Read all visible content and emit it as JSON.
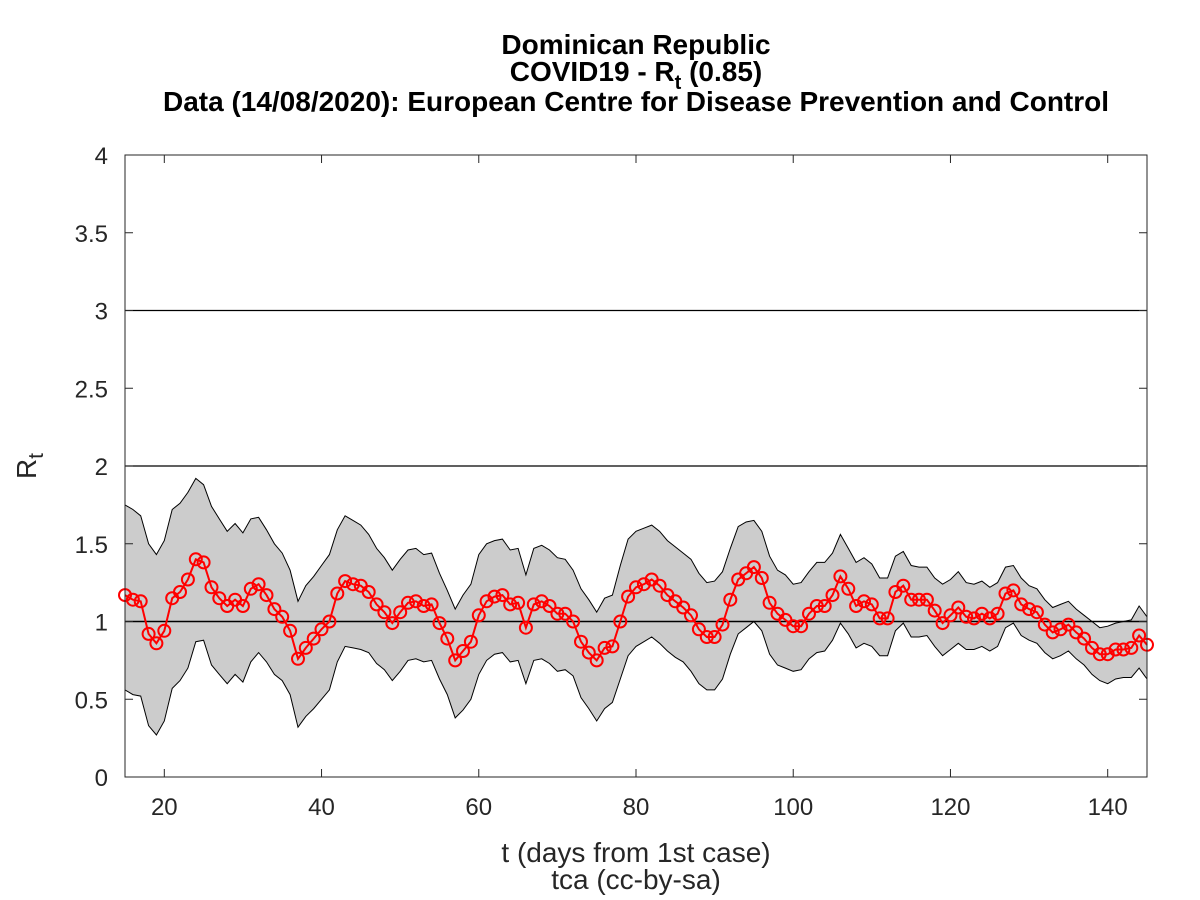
{
  "title": {
    "line1": "Dominican Republic",
    "line2_prefix": "COVID19 - R",
    "line2_sub": "t",
    "line2_suffix": " (0.85)",
    "line3": "Data (14/08/2020): European Centre for Disease Prevention and Control"
  },
  "axes": {
    "xlabel": "t (days from 1st case)",
    "credit": "tca (cc-by-sa)",
    "ylabel_main": "R",
    "ylabel_sub": "t"
  },
  "chart_data": {
    "type": "line",
    "x_start": 15,
    "x_end": 145,
    "xlim": [
      15,
      145
    ],
    "ylim": [
      0,
      4
    ],
    "x_ticks": [
      20,
      40,
      60,
      80,
      100,
      120,
      140
    ],
    "y_ticks": [
      0,
      0.5,
      1,
      1.5,
      2,
      2.5,
      3,
      3.5,
      4
    ],
    "x_tick_labels": [
      "20",
      "40",
      "60",
      "80",
      "100",
      "120",
      "140"
    ],
    "y_tick_labels": [
      "0",
      "0.5",
      "1",
      "1.5",
      "2",
      "2.5",
      "3",
      "3.5",
      "4"
    ],
    "reference_lines": [
      1,
      2,
      3
    ],
    "series": [
      {
        "role": "rt",
        "color": "#ff0000",
        "marker": "circle",
        "values": [
          1.17,
          1.14,
          1.13,
          0.92,
          0.86,
          0.94,
          1.15,
          1.19,
          1.27,
          1.4,
          1.38,
          1.22,
          1.15,
          1.1,
          1.14,
          1.1,
          1.21,
          1.24,
          1.17,
          1.08,
          1.03,
          0.94,
          0.76,
          0.83,
          0.89,
          0.95,
          1.0,
          1.18,
          1.26,
          1.24,
          1.23,
          1.19,
          1.11,
          1.06,
          0.99,
          1.06,
          1.12,
          1.13,
          1.1,
          1.11,
          0.99,
          0.89,
          0.75,
          0.81,
          0.87,
          1.04,
          1.13,
          1.16,
          1.17,
          1.11,
          1.12,
          0.96,
          1.11,
          1.13,
          1.1,
          1.05,
          1.05,
          1.0,
          0.87,
          0.8,
          0.75,
          0.83,
          0.84,
          1.0,
          1.16,
          1.22,
          1.24,
          1.27,
          1.23,
          1.17,
          1.13,
          1.09,
          1.04,
          0.95,
          0.9,
          0.9,
          0.98,
          1.14,
          1.27,
          1.31,
          1.35,
          1.28,
          1.12,
          1.05,
          1.01,
          0.97,
          0.97,
          1.05,
          1.1,
          1.1,
          1.17,
          1.29,
          1.21,
          1.1,
          1.13,
          1.11,
          1.02,
          1.02,
          1.19,
          1.23,
          1.14,
          1.14,
          1.14,
          1.07,
          0.99,
          1.04,
          1.09,
          1.03,
          1.02,
          1.05,
          1.02,
          1.05,
          1.18,
          1.2,
          1.11,
          1.08,
          1.06,
          0.98,
          0.93,
          0.95,
          0.98,
          0.93,
          0.89,
          0.83,
          0.79,
          0.79,
          0.82,
          0.82,
          0.83,
          0.91,
          0.85
        ]
      },
      {
        "role": "upper",
        "color": "#000000",
        "values": [
          1.75,
          1.72,
          1.68,
          1.5,
          1.43,
          1.52,
          1.72,
          1.76,
          1.83,
          1.92,
          1.88,
          1.74,
          1.66,
          1.58,
          1.63,
          1.57,
          1.66,
          1.67,
          1.59,
          1.5,
          1.44,
          1.33,
          1.13,
          1.23,
          1.29,
          1.36,
          1.43,
          1.59,
          1.68,
          1.65,
          1.62,
          1.56,
          1.47,
          1.41,
          1.33,
          1.4,
          1.46,
          1.47,
          1.43,
          1.44,
          1.31,
          1.2,
          1.08,
          1.17,
          1.24,
          1.43,
          1.5,
          1.52,
          1.53,
          1.46,
          1.47,
          1.3,
          1.47,
          1.49,
          1.46,
          1.41,
          1.4,
          1.33,
          1.21,
          1.14,
          1.06,
          1.15,
          1.17,
          1.36,
          1.53,
          1.58,
          1.6,
          1.62,
          1.58,
          1.52,
          1.48,
          1.44,
          1.4,
          1.31,
          1.25,
          1.26,
          1.32,
          1.47,
          1.61,
          1.64,
          1.65,
          1.58,
          1.42,
          1.33,
          1.3,
          1.24,
          1.25,
          1.32,
          1.38,
          1.38,
          1.44,
          1.56,
          1.47,
          1.38,
          1.41,
          1.37,
          1.28,
          1.28,
          1.42,
          1.45,
          1.36,
          1.35,
          1.35,
          1.28,
          1.24,
          1.27,
          1.32,
          1.25,
          1.24,
          1.26,
          1.22,
          1.25,
          1.35,
          1.36,
          1.28,
          1.23,
          1.21,
          1.14,
          1.09,
          1.11,
          1.13,
          1.08,
          1.04,
          1.0,
          0.96,
          0.97,
          0.99,
          1.0,
          1.01,
          1.1,
          1.03
        ]
      },
      {
        "role": "lower",
        "color": "#000000",
        "values": [
          0.56,
          0.53,
          0.52,
          0.33,
          0.27,
          0.36,
          0.57,
          0.62,
          0.7,
          0.87,
          0.88,
          0.72,
          0.66,
          0.6,
          0.66,
          0.61,
          0.74,
          0.8,
          0.74,
          0.66,
          0.62,
          0.53,
          0.32,
          0.39,
          0.44,
          0.5,
          0.56,
          0.74,
          0.84,
          0.83,
          0.82,
          0.8,
          0.73,
          0.69,
          0.62,
          0.68,
          0.75,
          0.76,
          0.74,
          0.75,
          0.63,
          0.53,
          0.38,
          0.43,
          0.5,
          0.66,
          0.75,
          0.79,
          0.8,
          0.74,
          0.75,
          0.6,
          0.75,
          0.76,
          0.73,
          0.68,
          0.69,
          0.65,
          0.51,
          0.44,
          0.36,
          0.44,
          0.48,
          0.63,
          0.78,
          0.84,
          0.87,
          0.9,
          0.86,
          0.81,
          0.77,
          0.74,
          0.68,
          0.6,
          0.56,
          0.56,
          0.63,
          0.79,
          0.92,
          0.96,
          1.0,
          0.94,
          0.79,
          0.72,
          0.7,
          0.68,
          0.69,
          0.76,
          0.8,
          0.81,
          0.88,
          0.99,
          0.92,
          0.83,
          0.86,
          0.84,
          0.78,
          0.78,
          0.94,
          0.99,
          0.9,
          0.9,
          0.91,
          0.84,
          0.78,
          0.82,
          0.86,
          0.82,
          0.82,
          0.84,
          0.81,
          0.84,
          0.96,
          0.99,
          0.91,
          0.88,
          0.86,
          0.8,
          0.76,
          0.78,
          0.81,
          0.76,
          0.72,
          0.66,
          0.62,
          0.6,
          0.63,
          0.64,
          0.64,
          0.7,
          0.63
        ]
      }
    ]
  }
}
